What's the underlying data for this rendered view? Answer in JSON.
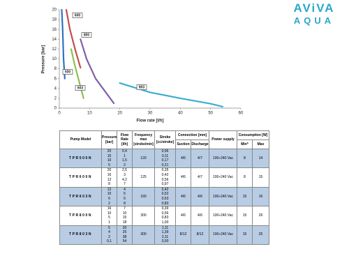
{
  "chart_data": {
    "type": "line",
    "x_label": "Flow rate [l/h]",
    "y_label": "Pressure [bar]",
    "xlim": [
      0,
      60
    ],
    "xticks": [
      0,
      10,
      20,
      30,
      40,
      50,
      60
    ],
    "ylim": [
      0,
      20
    ],
    "yticks": [
      0,
      2,
      4,
      6,
      8,
      10,
      12,
      14,
      16,
      18,
      20
    ],
    "grid": false,
    "series": [
      {
        "name": "500",
        "color": "#2e74c0",
        "x": [
          0.8,
          1.1,
          1.4,
          1.8
        ],
        "values": [
          20,
          16,
          10,
          6
        ]
      },
      {
        "name": "600",
        "color": "#c0504d",
        "x": [
          2.3,
          3.5,
          5.2,
          7
        ],
        "values": [
          20,
          16,
          12,
          8.2
        ]
      },
      {
        "name": "603",
        "color": "#8fbf4f",
        "x": [
          3.9,
          5,
          6.5,
          8
        ],
        "values": [
          12,
          9,
          5.5,
          2
        ]
      },
      {
        "name": "800",
        "color": "#7f5fa8",
        "x": [
          7,
          9,
          12,
          18
        ],
        "values": [
          14,
          10,
          6,
          1
        ]
      },
      {
        "name": "803",
        "color": "#3aaed0",
        "x": [
          20,
          30,
          40,
          50,
          54
        ],
        "values": [
          5.1,
          3.2,
          2,
          0.9,
          0.3
        ]
      }
    ]
  },
  "logo": {
    "top": "AViVA",
    "bottom": "AQUA"
  },
  "table": {
    "header": [
      "Pump Model",
      "Pressure [bar]",
      "Flow Rate [l/h]",
      "Frequency max [stroke/min]",
      "Stroke [cc/stroke]",
      "Connection [mm]",
      "Power supply",
      "Consumption [W]"
    ],
    "subheader": [
      "Suction",
      "Discharge",
      "Min*",
      "Max"
    ],
    "rows": [
      {
        "model": "TPR500N",
        "pressure": [
          "20",
          "16",
          "10",
          "5"
        ],
        "flow": [
          "0,4",
          "1",
          "1,5",
          "2"
        ],
        "freq": "120",
        "stroke": [
          "0,06",
          "0,11",
          "0,17",
          "0,21"
        ],
        "suction": "4/6",
        "discharge": "4/7",
        "power": "100÷240 Vac",
        "min": "8",
        "max": "14"
      },
      {
        "model": "TPR600N",
        "pressure": [
          "20",
          "16",
          "12",
          "8"
        ],
        "flow": [
          "2,5",
          "3",
          "4,2",
          "7"
        ],
        "freq": "125",
        "stroke": [
          "0,35",
          "0,42",
          "0,56",
          "0,97"
        ],
        "suction": "4/6",
        "discharge": "4/7",
        "power": "100÷240 Vac",
        "min": "8",
        "max": "15"
      },
      {
        "model": "TPR603N",
        "pressure": [
          "12",
          "10",
          "6",
          "2"
        ],
        "flow": [
          "4",
          "5",
          "6",
          "8"
        ],
        "freq": "160",
        "stroke": [
          "0,42",
          "0,52",
          "0,63",
          "0,83"
        ],
        "suction": "4/6",
        "discharge": "4/6",
        "power": "100÷240 Vac",
        "min": "15",
        "max": "16"
      },
      {
        "model": "TPR800N",
        "pressure": [
          "16",
          "10",
          "5",
          "1"
        ],
        "flow": [
          "7",
          "10",
          "15",
          "18"
        ],
        "freq": "300",
        "stroke": [
          "0,39",
          "0,56",
          "0,83",
          "1,00"
        ],
        "suction": "4/6",
        "discharge": "4/6",
        "power": "100÷240 Vac",
        "min": "15",
        "max": "26"
      },
      {
        "model": "TPR803N",
        "pressure": [
          "5",
          "4",
          "2",
          "0,1"
        ],
        "flow": [
          "20",
          "25",
          "38",
          "54"
        ],
        "freq": "300",
        "stroke": [
          "1,11",
          "1,39",
          "2,11",
          "3,00"
        ],
        "suction": "8/12",
        "discharge": "8/12",
        "power": "100÷240 Vac",
        "min": "15",
        "max": "25"
      }
    ]
  }
}
